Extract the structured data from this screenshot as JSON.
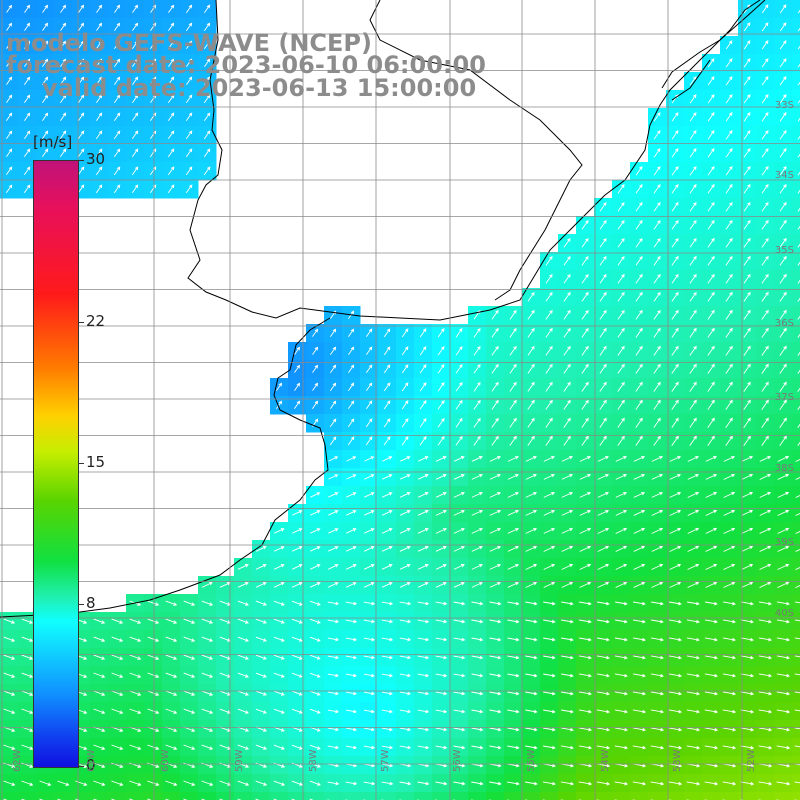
{
  "title": {
    "model": "modelo GEFS-WAVE (NCEP)",
    "forecast": "forecast date: 2023-06-10 06:00:00",
    "valid": "valid date: 2023-06-13 15:00:00"
  },
  "colorbar": {
    "unit": "[m/s]",
    "min": 0,
    "max": 30,
    "ticks": [
      {
        "label": "30",
        "value": 30
      },
      {
        "label": "22",
        "value": 22
      },
      {
        "label": "15",
        "value": 15
      },
      {
        "label": "8",
        "value": 8
      },
      {
        "label": "0",
        "value": 0
      }
    ]
  },
  "map": {
    "variable": "wind speed and direction",
    "region": "Uruguay / Rio de la Plata / Buenos Aires coast",
    "lat_labels": [
      "33S",
      "34S",
      "35S",
      "36S",
      "37S",
      "38S",
      "39S",
      "40S"
    ],
    "lon_labels": [
      "62W",
      "61W",
      "60W",
      "59W",
      "58W",
      "57W",
      "56W",
      "55W",
      "54W",
      "53W",
      "52W"
    ],
    "colors": {
      "land": "#ffffff",
      "coast": "#000000",
      "grid": "#8a8a8a",
      "arrow": "#ffffff"
    }
  }
}
